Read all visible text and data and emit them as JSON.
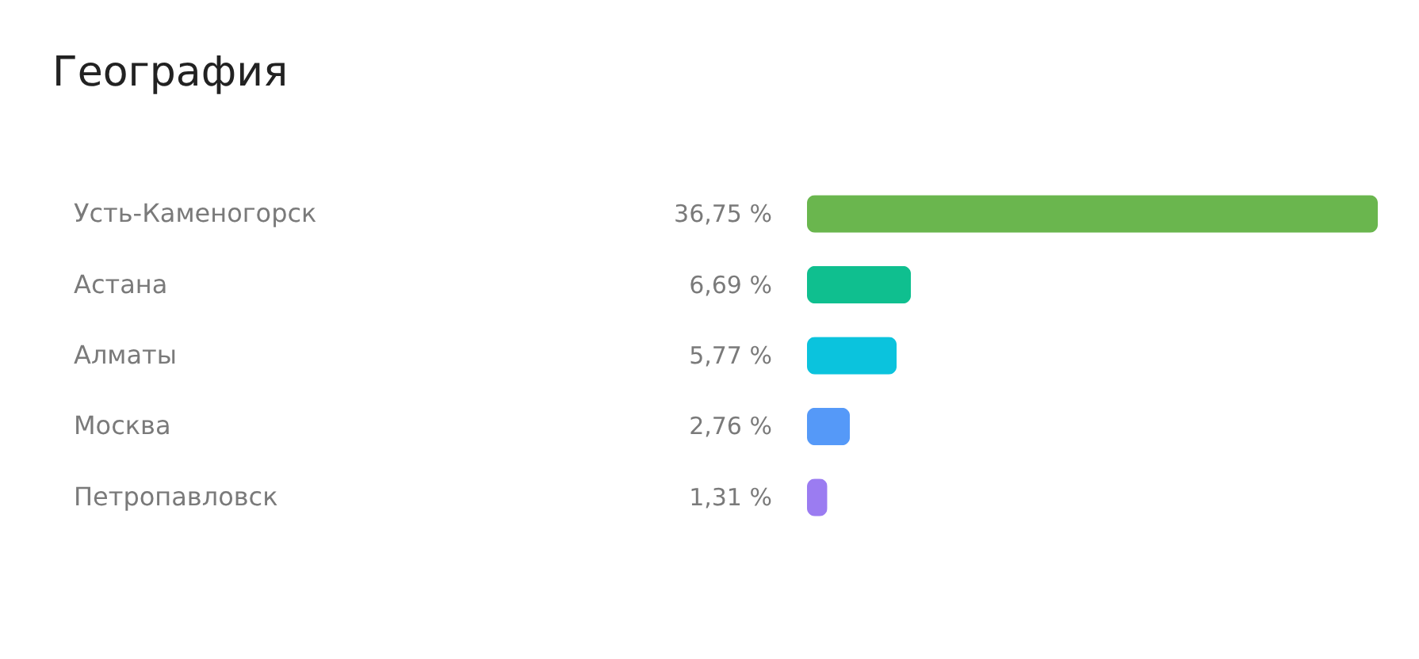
{
  "chart_data": {
    "type": "bar",
    "orientation": "horizontal",
    "title": "География",
    "categories": [
      "Усть-Каменогорск",
      "Астана",
      "Алматы",
      "Москва",
      "Петропавловск"
    ],
    "values": [
      36.75,
      6.69,
      5.77,
      2.76,
      1.31
    ],
    "value_labels": [
      "36,75 %",
      "6,69 %",
      "5,77 %",
      "2,76 %",
      "1,31 %"
    ],
    "colors": [
      "#6ab64e",
      "#0fbf8f",
      "#0bc3dd",
      "#5599f8",
      "#9b7cf1"
    ],
    "grid": false,
    "legend": false
  }
}
